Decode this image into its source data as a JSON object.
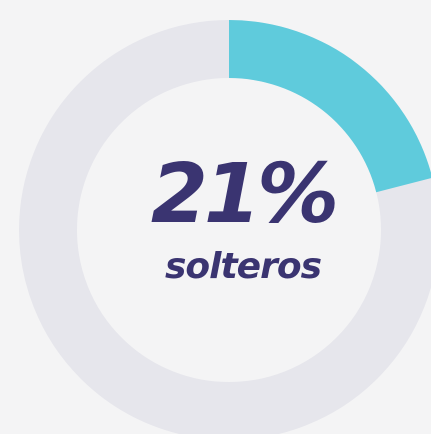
{
  "chart_data": {
    "type": "donut",
    "categories": [
      "solteros"
    ],
    "values": [
      21
    ],
    "value_labels": [
      "21%"
    ],
    "color": "#5fcbdc"
  }
}
